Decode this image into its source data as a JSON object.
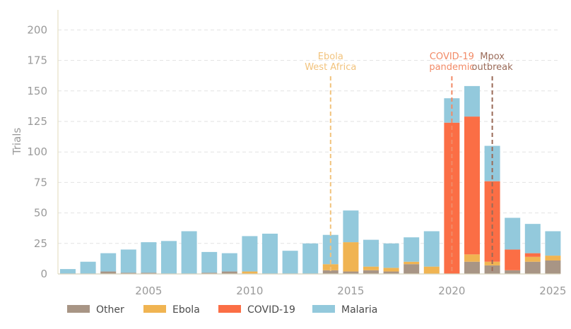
{
  "chart_data": {
    "type": "bar",
    "stacked": true,
    "title": "",
    "ylabel": "Trials",
    "xlabel": "",
    "ylim": [
      0,
      210
    ],
    "y_ticks": [
      0,
      25,
      50,
      75,
      100,
      125,
      150,
      175,
      200
    ],
    "x_tick_labels": [
      "2005",
      "2010",
      "2015",
      "2020",
      "2025"
    ],
    "grid": "horizontal dashed",
    "legend_position": "bottom-left",
    "categories": [
      2001,
      2002,
      2003,
      2004,
      2005,
      2006,
      2007,
      2008,
      2009,
      2010,
      2011,
      2012,
      2013,
      2014,
      2015,
      2016,
      2017,
      2018,
      2019,
      2020,
      2021,
      2022,
      2023,
      2024,
      2025
    ],
    "series": [
      {
        "name": "Other",
        "color": "#a89585",
        "values": [
          0,
          0,
          2,
          1,
          1,
          0,
          0,
          1,
          2,
          0,
          0,
          0,
          0,
          3,
          2,
          3,
          2,
          8,
          0,
          0,
          10,
          7,
          3,
          10,
          11
        ]
      },
      {
        "name": "Ebola",
        "color": "#f0b452",
        "values": [
          0,
          0,
          0,
          0,
          0,
          0,
          0,
          0,
          0,
          2,
          0,
          0,
          0,
          5,
          24,
          3,
          3,
          2,
          6,
          0,
          6,
          3,
          0,
          4,
          4
        ]
      },
      {
        "name": "COVID-19",
        "color": "#fb6e45",
        "values": [
          0,
          0,
          0,
          0,
          0,
          0,
          0,
          0,
          0,
          0,
          0,
          0,
          0,
          0,
          0,
          0,
          0,
          0,
          0,
          124,
          113,
          66,
          17,
          3,
          0
        ]
      },
      {
        "name": "Malaria",
        "color": "#93c9dc",
        "values": [
          4,
          10,
          15,
          19,
          25,
          27,
          35,
          17,
          15,
          29,
          33,
          19,
          25,
          24,
          26,
          22,
          20,
          20,
          29,
          20,
          25,
          29,
          26,
          24,
          20
        ]
      }
    ],
    "annotations": [
      {
        "lines": [
          "Ebola",
          "West Africa"
        ],
        "x": 2014,
        "color": "#f2c37d"
      },
      {
        "lines": [
          "COVID-19",
          "pandemic"
        ],
        "x": 2020,
        "color": "#f28a66"
      },
      {
        "lines": [
          "Mpox",
          "outbreak"
        ],
        "x": 2022,
        "color": "#9a6a58"
      }
    ]
  }
}
